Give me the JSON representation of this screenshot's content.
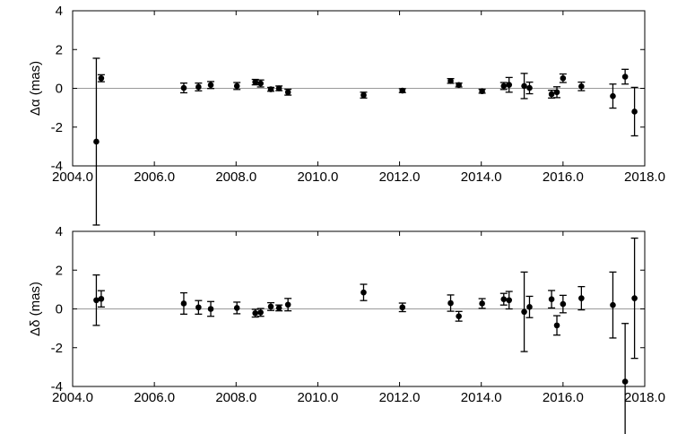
{
  "chart_data": [
    {
      "type": "scatter",
      "title": "",
      "xlabel": "",
      "ylabel": "Δα (mas)",
      "xlim": [
        2004.0,
        2018.0
      ],
      "ylim": [
        -4,
        4
      ],
      "xticks": [
        "2004.0",
        "2006.0",
        "2008.0",
        "2010.0",
        "2012.0",
        "2014.0",
        "2016.0",
        "2018.0"
      ],
      "yticks": [
        "4",
        "2",
        "0",
        "-2",
        "-4"
      ],
      "zero_line": true,
      "error_bars": true,
      "points": [
        {
          "x": 2004.58,
          "y": -2.75,
          "err": 4.3
        },
        {
          "x": 2004.7,
          "y": 0.52,
          "err": 0.18
        },
        {
          "x": 2006.72,
          "y": 0.02,
          "err": 0.25
        },
        {
          "x": 2007.08,
          "y": 0.07,
          "err": 0.2
        },
        {
          "x": 2007.38,
          "y": 0.17,
          "err": 0.18
        },
        {
          "x": 2008.02,
          "y": 0.12,
          "err": 0.18
        },
        {
          "x": 2008.47,
          "y": 0.32,
          "err": 0.14
        },
        {
          "x": 2008.6,
          "y": 0.25,
          "err": 0.18
        },
        {
          "x": 2008.85,
          "y": -0.05,
          "err": 0.1
        },
        {
          "x": 2009.05,
          "y": 0.0,
          "err": 0.12
        },
        {
          "x": 2009.27,
          "y": -0.2,
          "err": 0.15
        },
        {
          "x": 2011.12,
          "y": -0.35,
          "err": 0.15
        },
        {
          "x": 2012.07,
          "y": -0.12,
          "err": 0.1
        },
        {
          "x": 2013.25,
          "y": 0.38,
          "err": 0.12
        },
        {
          "x": 2013.45,
          "y": 0.17,
          "err": 0.1
        },
        {
          "x": 2014.02,
          "y": -0.15,
          "err": 0.1
        },
        {
          "x": 2014.55,
          "y": 0.12,
          "err": 0.18
        },
        {
          "x": 2014.68,
          "y": 0.18,
          "err": 0.38
        },
        {
          "x": 2015.05,
          "y": 0.12,
          "err": 0.65
        },
        {
          "x": 2015.18,
          "y": 0.02,
          "err": 0.3
        },
        {
          "x": 2015.72,
          "y": -0.3,
          "err": 0.2
        },
        {
          "x": 2015.85,
          "y": -0.2,
          "err": 0.28
        },
        {
          "x": 2016.0,
          "y": 0.52,
          "err": 0.22
        },
        {
          "x": 2016.45,
          "y": 0.1,
          "err": 0.22
        },
        {
          "x": 2017.22,
          "y": -0.4,
          "err": 0.62
        },
        {
          "x": 2017.52,
          "y": 0.6,
          "err": 0.38
        },
        {
          "x": 2017.75,
          "y": -1.2,
          "err": 1.25
        }
      ]
    },
    {
      "type": "scatter",
      "title": "",
      "xlabel": "",
      "ylabel": "Δδ (mas)",
      "xlim": [
        2004.0,
        2018.0
      ],
      "ylim": [
        -4,
        4
      ],
      "xticks": [
        "2004.0",
        "2006.0",
        "2008.0",
        "2010.0",
        "2012.0",
        "2014.0",
        "2016.0",
        "2018.0"
      ],
      "yticks": [
        "4",
        "2",
        "0",
        "-2",
        "-4"
      ],
      "zero_line": true,
      "error_bars": true,
      "points": [
        {
          "x": 2004.58,
          "y": 0.45,
          "err": 1.3
        },
        {
          "x": 2004.7,
          "y": 0.52,
          "err": 0.42
        },
        {
          "x": 2006.72,
          "y": 0.28,
          "err": 0.55
        },
        {
          "x": 2007.08,
          "y": 0.08,
          "err": 0.35
        },
        {
          "x": 2007.38,
          "y": 0.0,
          "err": 0.38
        },
        {
          "x": 2008.02,
          "y": 0.05,
          "err": 0.3
        },
        {
          "x": 2008.47,
          "y": -0.22,
          "err": 0.2
        },
        {
          "x": 2008.6,
          "y": -0.18,
          "err": 0.2
        },
        {
          "x": 2008.85,
          "y": 0.12,
          "err": 0.2
        },
        {
          "x": 2009.05,
          "y": 0.05,
          "err": 0.15
        },
        {
          "x": 2009.27,
          "y": 0.22,
          "err": 0.32
        },
        {
          "x": 2011.12,
          "y": 0.85,
          "err": 0.42
        },
        {
          "x": 2012.07,
          "y": 0.08,
          "err": 0.22
        },
        {
          "x": 2013.25,
          "y": 0.3,
          "err": 0.42
        },
        {
          "x": 2013.45,
          "y": -0.38,
          "err": 0.25
        },
        {
          "x": 2014.02,
          "y": 0.28,
          "err": 0.25
        },
        {
          "x": 2014.55,
          "y": 0.5,
          "err": 0.3
        },
        {
          "x": 2014.68,
          "y": 0.45,
          "err": 0.45
        },
        {
          "x": 2015.05,
          "y": -0.15,
          "err": 2.05
        },
        {
          "x": 2015.18,
          "y": 0.1,
          "err": 0.55
        },
        {
          "x": 2015.72,
          "y": 0.5,
          "err": 0.45
        },
        {
          "x": 2015.85,
          "y": -0.85,
          "err": 0.5
        },
        {
          "x": 2016.0,
          "y": 0.25,
          "err": 0.45
        },
        {
          "x": 2016.45,
          "y": 0.55,
          "err": 0.6
        },
        {
          "x": 2017.22,
          "y": 0.2,
          "err": 1.7
        },
        {
          "x": 2017.52,
          "y": -3.75,
          "err": 3.0
        },
        {
          "x": 2017.75,
          "y": 0.55,
          "err": 3.1
        }
      ]
    }
  ]
}
